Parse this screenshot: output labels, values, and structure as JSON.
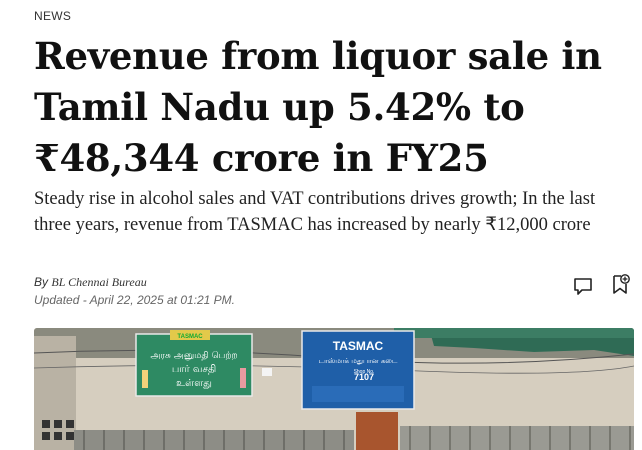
{
  "section": {
    "label": "NEWS"
  },
  "article": {
    "headline": "Revenue from liquor sale in Tamil Nadu up 5.42% to ₹48,344 crore in FY25",
    "dek": "Steady rise in alcohol sales and VAT contributions drives growth; In the last three years, revenue from TASMAC has increased by nearly ₹12,000 crore",
    "byline_prefix": "By",
    "author": "BL Chennai Bureau",
    "updated": "Updated - April 22, 2025 at 01:21 PM."
  },
  "actions": {
    "comment_icon": "comment-icon",
    "bookmark_icon": "bookmark-add-icon"
  },
  "photo": {
    "sign_left_text_1": "அரசு அனுமதி பெற்ற",
    "sign_left_text_2": "பார் வசதி",
    "sign_left_text_3": "உள்ளது",
    "sign_left_brand": "TASMAC",
    "sign_right_brand": "TASMAC",
    "sign_right_text": "டாஸ்மாக் மதுபான கடை",
    "sign_right_shop_label": "Shop No.",
    "sign_right_shop_no": "7107",
    "colors": {
      "awning": "#2f6b55",
      "wall": "#d8d0c1",
      "sign_green": "#2e8a63",
      "sign_blue": "#1f5fa8"
    }
  }
}
